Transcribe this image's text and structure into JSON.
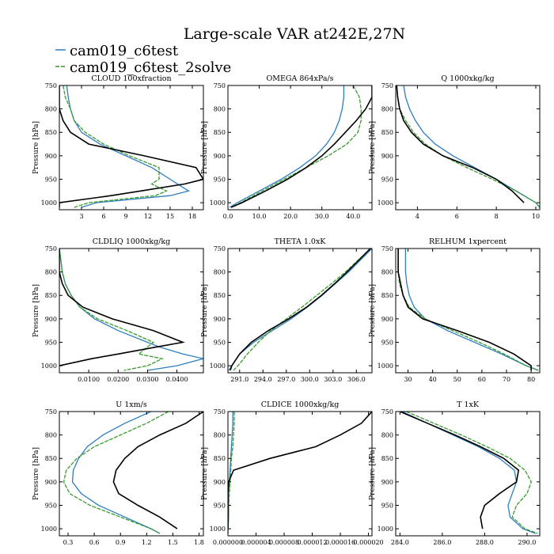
{
  "title": "Large-scale VAR at242E,27N",
  "legend": [
    {
      "name": "cam019_c6test",
      "color": "#2e7ebc",
      "dashed": false
    },
    {
      "name": "cam019_c6test_2solve",
      "color": "#3a9a2e",
      "dashed": true
    }
  ],
  "ref_color": "#000000",
  "chart_data": [
    {
      "type": "line",
      "title": "CLOUD  100xfraction",
      "ylabel": "Pressure [hPa]",
      "xlim": [
        0,
        19.5
      ],
      "ylim": [
        1015,
        750
      ],
      "yticks": [
        750,
        800,
        850,
        900,
        950,
        1000
      ],
      "xticks": [
        3,
        6,
        9,
        12,
        15,
        18
      ],
      "xticklabels": [
        "3",
        "6",
        "9",
        "12",
        "15",
        "18"
      ],
      "pressure": [
        750,
        775,
        800,
        825,
        850,
        875,
        900,
        925,
        950,
        960,
        975,
        985,
        1000,
        1010
      ],
      "series": [
        {
          "values": [
            1.0,
            1.2,
            1.5,
            2.0,
            3.0,
            5.5,
            9.0,
            12.5,
            15.0,
            16.0,
            17.5,
            15.0,
            5.0,
            3.0
          ]
        },
        {
          "values": [
            0.5,
            0.8,
            1.5,
            2.0,
            3.5,
            6.0,
            9.5,
            13.5,
            13.5,
            12.5,
            14.5,
            13.0,
            4.0,
            2.0
          ]
        },
        {
          "values": [
            0.0,
            0.0,
            0.0,
            0.5,
            1.5,
            4.0,
            11.5,
            18.5,
            19.5,
            17.0,
            11.0,
            7.0,
            0.0,
            0.0
          ]
        }
      ]
    },
    {
      "type": "line",
      "title": "OMEGA  864xPa/s",
      "ylabel": "Pressure [hPa]",
      "xlim": [
        0,
        46
      ],
      "ylim": [
        1015,
        750
      ],
      "yticks": [
        750,
        800,
        850,
        900,
        950,
        1000
      ],
      "xticks": [
        0,
        10,
        20,
        30,
        40
      ],
      "xticklabels": [
        "0.0",
        "10.0",
        "20.0",
        "30.0",
        "40.0"
      ],
      "pressure": [
        750,
        775,
        800,
        825,
        850,
        875,
        900,
        925,
        950,
        975,
        1000,
        1010
      ],
      "series": [
        {
          "values": [
            37,
            37,
            36.5,
            35.5,
            34,
            31.5,
            28,
            23,
            17,
            10,
            3,
            0.5
          ]
        },
        {
          "values": [
            40,
            42,
            42.5,
            42.5,
            41.5,
            38,
            32,
            25,
            18,
            11,
            4,
            1
          ]
        },
        {
          "values": [
            46,
            46,
            44,
            41,
            37.5,
            34,
            30,
            25,
            19,
            12,
            4.5,
            1
          ]
        }
      ]
    },
    {
      "type": "line",
      "title": "Q  1000xkg/kg",
      "ylabel": "Pressure [hPa]",
      "xlim": [
        2.9,
        10.2
      ],
      "ylim": [
        1015,
        750
      ],
      "yticks": [
        750,
        800,
        850,
        900,
        950,
        1000
      ],
      "xticks": [
        4,
        6,
        8,
        10
      ],
      "xticklabels": [
        "4",
        "6",
        "8",
        "10"
      ],
      "pressure": [
        750,
        775,
        800,
        825,
        850,
        875,
        900,
        925,
        950,
        975,
        1000,
        1010
      ],
      "series": [
        {
          "values": [
            3.3,
            3.4,
            3.6,
            3.9,
            4.3,
            4.9,
            5.8,
            6.9,
            8.0,
            9.0,
            10.0,
            10.2
          ]
        },
        {
          "values": [
            2.95,
            3.0,
            3.1,
            3.4,
            3.8,
            4.4,
            5.3,
            6.5,
            7.8,
            9.0,
            10.0,
            10.2
          ]
        },
        {
          "values": [
            2.95,
            3.0,
            3.1,
            3.3,
            3.7,
            4.3,
            5.3,
            6.8,
            8.0,
            8.8,
            9.4,
            null
          ]
        }
      ]
    },
    {
      "type": "line",
      "title": "CLDLIQ  1000xkg/kg",
      "ylabel": "Pressure [hPa]",
      "xlim": [
        0,
        0.049
      ],
      "ylim": [
        1015,
        750
      ],
      "yticks": [
        750,
        800,
        850,
        900,
        950,
        1000
      ],
      "xticks": [
        0.01,
        0.02,
        0.03,
        0.04
      ],
      "xticklabels": [
        "0.0100",
        "0.0200",
        "0.0300",
        "0.0400"
      ],
      "pressure": [
        750,
        775,
        800,
        825,
        850,
        875,
        900,
        925,
        950,
        960,
        975,
        985,
        1000,
        1010
      ],
      "series": [
        {
          "values": [
            0.0,
            0.0005,
            0.001,
            0.002,
            0.004,
            0.007,
            0.012,
            0.02,
            0.03,
            0.034,
            0.042,
            0.049,
            0.04,
            0.03
          ]
        },
        {
          "values": [
            0.0,
            0.0005,
            0.001,
            0.002,
            0.004,
            0.007,
            0.013,
            0.023,
            0.032,
            0.03,
            0.027,
            0.035,
            0.03,
            0.022
          ]
        },
        {
          "values": [
            0.0,
            0.0,
            0.0,
            0.001,
            0.003,
            0.008,
            0.018,
            0.032,
            0.042,
            0.033,
            0.02,
            0.011,
            0.0,
            null
          ]
        }
      ]
    },
    {
      "type": "line",
      "title": "THETA  1.0xK",
      "ylabel": "Pressure [hPa]",
      "xlim": [
        289.5,
        308
      ],
      "ylim": [
        1015,
        750
      ],
      "yticks": [
        750,
        800,
        850,
        900,
        950,
        1000
      ],
      "xticks": [
        291,
        294,
        297,
        300,
        303,
        306
      ],
      "xticklabels": [
        "291.0",
        "294.0",
        "297.0",
        "300.0",
        "303.0",
        "306.0"
      ],
      "pressure": [
        750,
        775,
        800,
        825,
        850,
        875,
        900,
        925,
        950,
        975,
        1000,
        1010
      ],
      "series": [
        {
          "values": [
            308,
            306.5,
            305,
            303.3,
            301.6,
            299.7,
            297.6,
            295.2,
            292.8,
            291.0,
            290.0,
            289.6
          ]
        },
        {
          "values": [
            307.8,
            306.2,
            304.6,
            302.8,
            300.9,
            299.0,
            297.0,
            295.0,
            293.4,
            292.0,
            290.8,
            290.2
          ]
        },
        {
          "values": [
            307.8,
            306.3,
            304.8,
            303.2,
            301.5,
            299.6,
            297.3,
            294.7,
            292.5,
            291.0,
            290.0,
            289.8
          ]
        }
      ]
    },
    {
      "type": "line",
      "title": "RELHUM  1xpercent",
      "ylabel": "Pressure [hPa]",
      "xlim": [
        25,
        83.5
      ],
      "ylim": [
        1015,
        750
      ],
      "yticks": [
        750,
        800,
        850,
        900,
        950,
        1000
      ],
      "xticks": [
        30,
        40,
        50,
        60,
        70,
        80
      ],
      "xticklabels": [
        "30",
        "40",
        "50",
        "60",
        "70",
        "80"
      ],
      "pressure": [
        750,
        775,
        800,
        825,
        850,
        875,
        900,
        925,
        950,
        975,
        1000,
        1010
      ],
      "series": [
        {
          "values": [
            29,
            29,
            29,
            29.5,
            30.5,
            32.5,
            37,
            46,
            57,
            68,
            78,
            83
          ]
        },
        {
          "values": [
            26,
            26,
            26,
            26.5,
            28,
            30.5,
            37,
            48,
            59,
            69,
            78,
            83
          ]
        },
        {
          "values": [
            26,
            26,
            26,
            27,
            28,
            30,
            36,
            50,
            63,
            73,
            80,
            80
          ]
        }
      ]
    },
    {
      "type": "line",
      "title": "U  1xm/s",
      "ylabel": "Pressure [hPa]",
      "xlim": [
        0.2,
        1.85
      ],
      "ylim": [
        1015,
        750
      ],
      "yticks": [
        750,
        800,
        850,
        900,
        950,
        1000
      ],
      "xticks": [
        0.3,
        0.6,
        0.9,
        1.2,
        1.5,
        1.8
      ],
      "xticklabels": [
        "0.3",
        "0.6",
        "0.9",
        "1.2",
        "1.5",
        "1.8"
      ],
      "pressure": [
        750,
        775,
        800,
        825,
        850,
        875,
        900,
        925,
        950,
        975,
        1000,
        1010
      ],
      "series": [
        {
          "values": [
            1.25,
            0.95,
            0.7,
            0.52,
            0.42,
            0.36,
            0.35,
            0.45,
            0.65,
            0.95,
            1.25,
            1.35
          ]
        },
        {
          "values": [
            1.45,
            1.2,
            0.9,
            0.6,
            0.4,
            0.28,
            0.25,
            0.32,
            0.55,
            0.9,
            1.25,
            1.35
          ]
        },
        {
          "values": [
            1.85,
            1.65,
            1.35,
            1.1,
            0.95,
            0.85,
            0.82,
            0.88,
            1.1,
            1.35,
            1.55,
            null
          ]
        }
      ]
    },
    {
      "type": "line",
      "title": "CLDICE  1000xkg/kg",
      "ylabel": "Pressure [hPa]",
      "xlim": [
        0,
        2.05e-05
      ],
      "ylim": [
        1015,
        750
      ],
      "yticks": [
        750,
        800,
        850,
        900,
        950,
        1000
      ],
      "xticks": [
        0,
        4e-06,
        8e-06,
        1.2e-05,
        1.6e-05,
        2e-05
      ],
      "xticklabels": [
        "0.000000",
        "0.000004",
        "0.000008",
        "0.000012",
        "0.000016",
        "0.000020"
      ],
      "pressure": [
        750,
        775,
        800,
        825,
        850,
        875,
        900,
        925,
        950,
        975,
        1000,
        1010
      ],
      "series": [
        {
          "values": [
            7e-07,
            7e-07,
            6e-07,
            5e-07,
            4e-07,
            3e-07,
            2e-07,
            1e-07,
            1e-07,
            1e-07,
            0,
            0
          ]
        },
        {
          "values": [
            9e-07,
            9e-07,
            8e-07,
            7e-07,
            5e-07,
            4e-07,
            3e-07,
            2e-07,
            1e-07,
            1e-07,
            0,
            0
          ]
        },
        {
          "values": [
            2.05e-05,
            1.9e-05,
            1.6e-05,
            1.25e-05,
            6e-06,
            8e-07,
            1e-07,
            0,
            0,
            0,
            0,
            null
          ]
        }
      ]
    },
    {
      "type": "line",
      "title": "T  1xK",
      "ylabel": "Pressure [hPa]",
      "xlim": [
        283.8,
        290.6
      ],
      "ylim": [
        1015,
        750
      ],
      "yticks": [
        750,
        800,
        850,
        900,
        950,
        1000
      ],
      "xticks": [
        284,
        286,
        288,
        290
      ],
      "xticklabels": [
        "284.0",
        "286.0",
        "288.0",
        "290.0"
      ],
      "pressure": [
        750,
        775,
        800,
        825,
        850,
        875,
        900,
        925,
        950,
        975,
        1000,
        1010
      ],
      "series": [
        {
          "values": [
            284.1,
            285.3,
            286.5,
            287.7,
            288.7,
            289.4,
            289.5,
            289.3,
            289.1,
            289.2,
            289.8,
            290.4
          ]
        },
        {
          "values": [
            284.3,
            285.6,
            286.9,
            288.1,
            289.2,
            289.9,
            290.2,
            290.0,
            289.5,
            289.3,
            289.9,
            290.5
          ]
        },
        {
          "values": [
            284.0,
            285.3,
            286.6,
            287.8,
            288.9,
            289.6,
            289.5,
            288.7,
            288.0,
            287.8,
            287.9,
            null
          ]
        }
      ]
    }
  ]
}
